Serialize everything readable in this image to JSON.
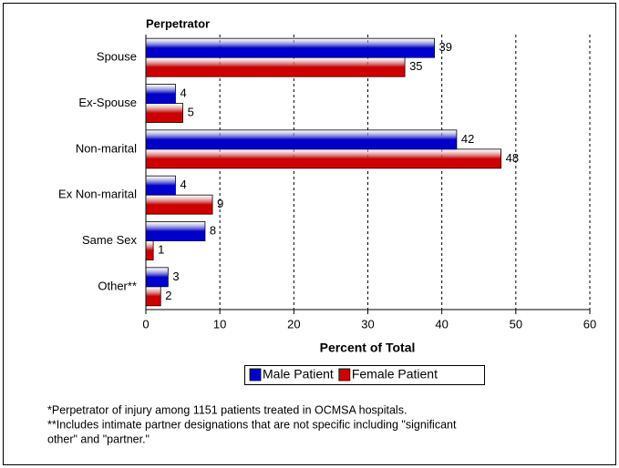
{
  "chart_data": {
    "type": "hbar",
    "title": "Perpetrator",
    "categories": [
      "Spouse",
      "Ex-Spouse",
      "Non-marital",
      "Ex Non-marital",
      "Same Sex",
      "Other**"
    ],
    "series": [
      {
        "name": "Male Patient",
        "color": "#0000cc",
        "values": [
          39,
          4,
          42,
          4,
          8,
          3
        ]
      },
      {
        "name": "Female Patient",
        "color": "#cc0000",
        "values": [
          35,
          5,
          48,
          9,
          1,
          2
        ]
      }
    ],
    "xlabel": "Percent of Total",
    "xlim": [
      0,
      60
    ],
    "xticks": [
      0,
      10,
      20,
      30,
      40,
      50,
      60
    ],
    "grid": true,
    "notes": [
      "*Perpetrator of injury among 1151 patients treated in OCMSA hospitals.",
      "**Includes intimate partner designations that are not specific including \"significant",
      "other\" and \"partner.\""
    ]
  }
}
